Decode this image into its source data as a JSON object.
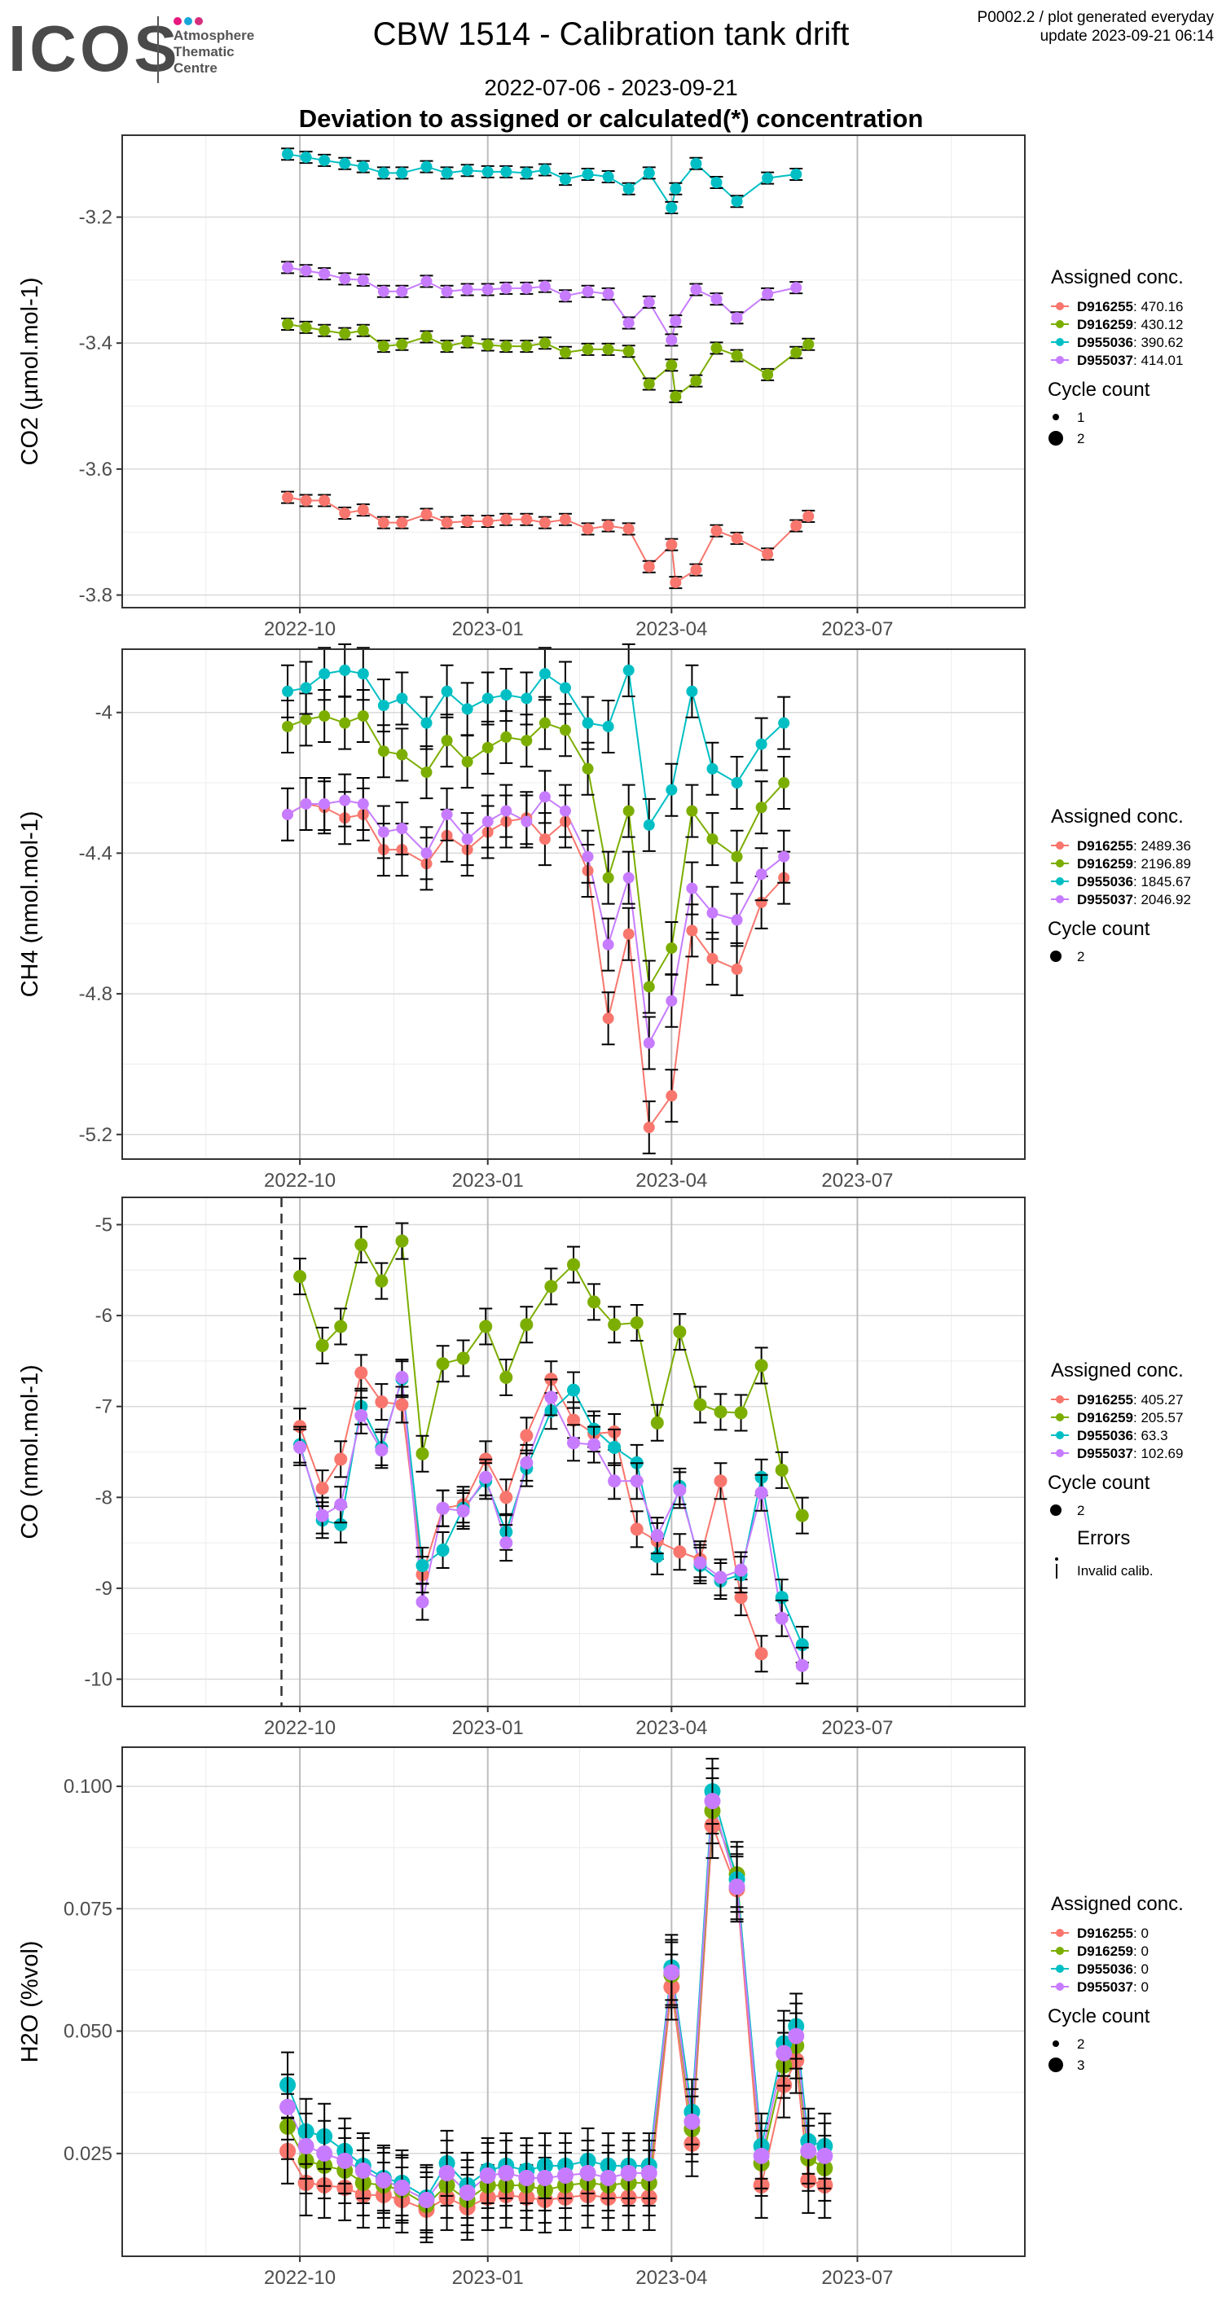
{
  "header": {
    "logo_text": "ICOS",
    "logo_sub": [
      "Atmosphere",
      "Thematic",
      "Centre"
    ],
    "logo_dot_colors": [
      "#e6197f",
      "#1aa6d8",
      "#d42d7c"
    ],
    "title": "CBW 1514 - Calibration tank drift",
    "date_range": "2022-07-06 - 2023-09-21",
    "subtitle": "Deviation to assigned or calculated(*) concentration",
    "info_line1": "P0002.2 / plot generated everyday",
    "info_line2": "update  2023-09-21 06:14"
  },
  "colors": {
    "D916255": "#F8766D",
    "D916259": "#7CAE00",
    "D955036": "#00BFC4",
    "D955037": "#C77CFF"
  },
  "chart_data": [
    {
      "type": "scatter",
      "ylabel": "CO2 (µmol.mol-1)",
      "x_tick_labels": [
        "2022-10",
        "2023-01",
        "2023-04",
        "2023-07"
      ],
      "y_ticks": [
        -3.2,
        -3.4,
        -3.6,
        -3.8
      ],
      "ylim": [
        -3.82,
        -3.07
      ],
      "legend": {
        "title": "Assigned conc.",
        "entries": [
          {
            "tank": "D916255",
            "value": ": 470.16"
          },
          {
            "tank": "D916259",
            "value": ": 430.12"
          },
          {
            "tank": "D955036",
            "value": ": 390.62"
          },
          {
            "tank": "D955037",
            "value": ": 414.01"
          }
        ],
        "cycle_title": "Cycle count",
        "cycle_items": [
          "1",
          "2"
        ]
      },
      "x": [
        "2022-09-25",
        "2022-10-04",
        "2022-10-13",
        "2022-10-23",
        "2022-11-01",
        "2022-11-11",
        "2022-11-20",
        "2022-12-02",
        "2022-12-12",
        "2022-12-22",
        "2023-01-01",
        "2023-01-10",
        "2023-01-20",
        "2023-01-29",
        "2023-02-08",
        "2023-02-19",
        "2023-03-01",
        "2023-03-11",
        "2023-03-21",
        "2023-04-01",
        "2023-04-03",
        "2023-04-13",
        "2023-04-23",
        "2023-05-03",
        "2023-05-18",
        "2023-06-01",
        "2023-06-07",
        "2023-06-15",
        "2023-06-30",
        "2023-07-15",
        "2023-07-31",
        "2023-08-15",
        "2023-08-27"
      ],
      "series": [
        {
          "name": "D916255",
          "values": [
            -3.645,
            -3.65,
            -3.65,
            -3.67,
            -3.665,
            -3.685,
            -3.685,
            -3.672,
            -3.685,
            -3.683,
            -3.683,
            -3.68,
            -3.68,
            -3.685,
            -3.68,
            -3.695,
            -3.69,
            -3.695,
            -3.755,
            -3.72,
            -3.78,
            -3.76,
            -3.698,
            -3.71,
            -3.735,
            -3.69,
            -3.675,
            null,
            null,
            null,
            null,
            null,
            null
          ]
        },
        {
          "name": "D916259",
          "values": [
            -3.37,
            -3.375,
            -3.38,
            -3.385,
            -3.38,
            -3.405,
            -3.402,
            -3.39,
            -3.405,
            -3.398,
            -3.403,
            -3.405,
            -3.405,
            -3.4,
            -3.415,
            -3.41,
            -3.41,
            -3.413,
            -3.465,
            -3.435,
            -3.485,
            -3.46,
            -3.408,
            -3.42,
            -3.45,
            -3.415,
            -3.402,
            null,
            null,
            null,
            null,
            null,
            null
          ]
        },
        {
          "name": "D955036",
          "values": [
            -3.1,
            -3.105,
            -3.11,
            -3.115,
            -3.12,
            -3.13,
            -3.13,
            -3.12,
            -3.13,
            -3.126,
            -3.128,
            -3.128,
            -3.13,
            -3.125,
            -3.14,
            -3.132,
            -3.136,
            -3.155,
            -3.13,
            -3.185,
            -3.155,
            -3.115,
            -3.145,
            -3.175,
            -3.138,
            -3.132,
            null,
            null,
            null,
            null,
            null,
            null,
            null
          ]
        },
        {
          "name": "D955037",
          "values": [
            -3.28,
            -3.285,
            -3.29,
            -3.298,
            -3.3,
            -3.318,
            -3.318,
            -3.302,
            -3.318,
            -3.315,
            -3.315,
            -3.313,
            -3.313,
            -3.31,
            -3.325,
            -3.318,
            -3.322,
            -3.368,
            -3.335,
            -3.395,
            -3.365,
            -3.315,
            -3.33,
            -3.36,
            -3.322,
            -3.312,
            null,
            null,
            null,
            null,
            null,
            null,
            null
          ]
        }
      ]
    },
    {
      "type": "scatter",
      "ylabel": "CH4 (nmol.mol-1)",
      "x_tick_labels": [
        "2022-10",
        "2023-01",
        "2023-04",
        "2023-07"
      ],
      "y_ticks": [
        -4.0,
        -4.4,
        -4.8,
        -5.2
      ],
      "ylim": [
        -5.27,
        -3.82
      ],
      "legend": {
        "title": "Assigned conc.",
        "entries": [
          {
            "tank": "D916255",
            "value": ": 2489.36"
          },
          {
            "tank": "D916259",
            "value": ": 2196.89"
          },
          {
            "tank": "D955036",
            "value": ": 1845.67"
          },
          {
            "tank": "D955037",
            "value": ": 2046.92"
          }
        ],
        "cycle_title": "Cycle count",
        "cycle_items": [
          "2"
        ]
      },
      "x": [
        "2022-09-25",
        "2022-10-04",
        "2022-10-13",
        "2022-10-23",
        "2022-11-01",
        "2022-11-11",
        "2022-11-20",
        "2022-12-02",
        "2022-12-12",
        "2022-12-22",
        "2023-01-01",
        "2023-01-10",
        "2023-01-20",
        "2023-01-29",
        "2023-02-08",
        "2023-02-19",
        "2023-03-01",
        "2023-03-11",
        "2023-03-21",
        "2023-04-01",
        "2023-04-11",
        "2023-04-21",
        "2023-05-03",
        "2023-05-15",
        "2023-05-26",
        "2023-06-01",
        "2023-06-07",
        "2023-06-15",
        "2023-06-30",
        "2023-07-15",
        "2023-07-25",
        "2023-08-05",
        "2023-08-15",
        "2023-08-27"
      ],
      "series": [
        {
          "name": "D916255",
          "values": [
            -4.29,
            -4.26,
            -4.27,
            -4.3,
            -4.29,
            -4.39,
            -4.39,
            -4.43,
            -4.35,
            -4.39,
            -4.34,
            -4.31,
            -4.3,
            -4.36,
            -4.31,
            -4.45,
            -4.87,
            -4.63,
            -5.18,
            -5.09,
            -4.62,
            -4.7,
            -4.73,
            -4.54,
            -4.47,
            null,
            null,
            null,
            null,
            null,
            null,
            null,
            null,
            null
          ]
        },
        {
          "name": "D916259",
          "values": [
            -4.04,
            -4.02,
            -4.01,
            -4.03,
            -4.01,
            -4.11,
            -4.12,
            -4.17,
            -4.08,
            -4.14,
            -4.1,
            -4.07,
            -4.08,
            -4.03,
            -4.05,
            -4.16,
            -4.47,
            -4.28,
            -4.78,
            -4.67,
            -4.28,
            -4.36,
            -4.41,
            -4.27,
            -4.2,
            null,
            null,
            null,
            null,
            null,
            null,
            null,
            null,
            null
          ]
        },
        {
          "name": "D955036",
          "values": [
            -3.94,
            -3.93,
            -3.89,
            -3.88,
            -3.89,
            -3.98,
            -3.96,
            -4.03,
            -3.94,
            -3.99,
            -3.96,
            -3.95,
            -3.96,
            -3.89,
            -3.93,
            -4.03,
            -4.04,
            -3.88,
            -4.32,
            -4.22,
            -3.94,
            -4.16,
            -4.2,
            -4.09,
            -4.03,
            null,
            null,
            null,
            null,
            null,
            null,
            null,
            null,
            null
          ]
        },
        {
          "name": "D955037",
          "values": [
            -4.29,
            -4.26,
            -4.26,
            -4.25,
            -4.26,
            -4.34,
            -4.33,
            -4.4,
            -4.29,
            -4.36,
            -4.31,
            -4.28,
            -4.31,
            -4.24,
            -4.28,
            -4.41,
            -4.66,
            -4.47,
            -4.94,
            -4.82,
            -4.5,
            -4.57,
            -4.59,
            -4.46,
            -4.41,
            null,
            null,
            null,
            null,
            null,
            null,
            null,
            null,
            null
          ]
        }
      ]
    },
    {
      "type": "scatter",
      "ylabel": "CO (nmol.mol-1)",
      "x_tick_labels": [
        "2022-10",
        "2023-01",
        "2023-04",
        "2023-07"
      ],
      "y_ticks": [
        -5,
        -6,
        -7,
        -8,
        -9,
        -10
      ],
      "ylim": [
        -10.3,
        -4.7
      ],
      "legend": {
        "title": "Assigned conc.",
        "entries": [
          {
            "tank": "D916255",
            "value": ": 405.27"
          },
          {
            "tank": "D916259",
            "value": ": 205.57"
          },
          {
            "tank": "D955036",
            "value": ": 63.3"
          },
          {
            "tank": "D955037",
            "value": ": 102.69"
          }
        ],
        "cycle_title": "Cycle count",
        "cycle_items": [
          "2"
        ],
        "errors_title": "Errors",
        "errors_items": [
          "Invalid calib."
        ]
      },
      "x": [
        "2022-10-01",
        "2022-10-12",
        "2022-10-21",
        "2022-10-31",
        "2022-11-10",
        "2022-11-20",
        "2022-11-30",
        "2022-12-10",
        "2022-12-20",
        "2022-12-31",
        "2023-01-10",
        "2023-01-20",
        "2023-02-01",
        "2023-02-12",
        "2023-02-22",
        "2023-03-04",
        "2023-03-15",
        "2023-03-25",
        "2023-04-05",
        "2023-04-15",
        "2023-04-25",
        "2023-05-05",
        "2023-05-15",
        "2023-05-25",
        "2023-06-04",
        "2023-06-15",
        "2023-06-25",
        "2023-07-05",
        "2023-07-15",
        "2023-07-25",
        "2023-08-05",
        "2023-08-15",
        "2023-08-25"
      ],
      "series": [
        {
          "name": "D916255",
          "values": [
            -7.22,
            -7.9,
            -7.58,
            -6.63,
            -6.95,
            -6.98,
            -8.85,
            -8.12,
            -8.08,
            -7.58,
            -8.0,
            -7.32,
            -6.7,
            -7.15,
            -7.3,
            -7.28,
            -8.35,
            -8.48,
            -8.6,
            -8.68,
            -7.82,
            -9.1,
            -9.72,
            null,
            null,
            null,
            null,
            null,
            null,
            null,
            null,
            null,
            null
          ]
        },
        {
          "name": "D916259",
          "values": [
            -5.57,
            -6.33,
            -6.12,
            -5.22,
            -5.62,
            -5.18,
            -7.52,
            -6.53,
            -6.47,
            -6.12,
            -6.68,
            -6.1,
            -5.68,
            -5.44,
            -5.85,
            -6.1,
            -6.08,
            -7.18,
            -6.18,
            -6.98,
            -7.06,
            -7.07,
            -6.55,
            -7.7,
            -8.2,
            null,
            null,
            null,
            null,
            null,
            null,
            null,
            null
          ]
        },
        {
          "name": "D955036",
          "values": [
            -7.42,
            -8.25,
            -8.3,
            -7.0,
            -7.45,
            -6.7,
            -8.75,
            -8.58,
            -8.12,
            -7.82,
            -8.38,
            -7.68,
            -7.05,
            -6.82,
            -7.25,
            -7.45,
            -7.62,
            -8.65,
            -7.88,
            -8.75,
            -8.92,
            -8.85,
            -7.78,
            -9.1,
            -9.62,
            null,
            null,
            null,
            null,
            null,
            null,
            null,
            null
          ]
        },
        {
          "name": "D955037",
          "values": [
            -7.45,
            -8.2,
            -8.08,
            -7.1,
            -7.48,
            -6.68,
            -9.15,
            -8.12,
            -8.15,
            -7.78,
            -8.5,
            -7.62,
            -6.9,
            -7.4,
            -7.42,
            -7.82,
            -7.82,
            -8.42,
            -7.92,
            -8.72,
            -8.88,
            -8.8,
            -7.95,
            -9.33,
            -9.85,
            null,
            null,
            null,
            null,
            null,
            null,
            null,
            null
          ]
        }
      ]
    },
    {
      "type": "scatter",
      "ylabel": "H2O (%vol)",
      "x_tick_labels": [
        "2022-10",
        "2023-01",
        "2023-04",
        "2023-07"
      ],
      "y_ticks": [
        0.1,
        0.075,
        0.05,
        0.025
      ],
      "ytick_labels": [
        "0.100",
        "0.075",
        "0.050",
        "0.025"
      ],
      "ylim": [
        0.004,
        0.108
      ],
      "legend": {
        "title": "Assigned conc.",
        "entries": [
          {
            "tank": "D916255",
            "value": ": 0"
          },
          {
            "tank": "D916259",
            "value": ": 0"
          },
          {
            "tank": "D955036",
            "value": ": 0"
          },
          {
            "tank": "D955037",
            "value": ": 0"
          }
        ],
        "cycle_title": "Cycle count",
        "cycle_items": [
          "2",
          "3"
        ]
      },
      "x": [
        "2022-09-25",
        "2022-10-04",
        "2022-10-13",
        "2022-10-23",
        "2022-11-01",
        "2022-11-11",
        "2022-11-20",
        "2022-12-02",
        "2022-12-12",
        "2022-12-22",
        "2023-01-01",
        "2023-01-10",
        "2023-01-20",
        "2023-01-29",
        "2023-02-08",
        "2023-02-19",
        "2023-03-01",
        "2023-03-11",
        "2023-03-21",
        "2023-04-01",
        "2023-04-11",
        "2023-04-21",
        "2023-05-03",
        "2023-05-15",
        "2023-05-26",
        "2023-06-01",
        "2023-06-07",
        "2023-06-15",
        "2023-06-30",
        "2023-07-15",
        "2023-07-25",
        "2023-08-05",
        "2023-08-15",
        "2023-08-27"
      ],
      "series": [
        {
          "name": "D916255",
          "values": [
            0.0255,
            0.019,
            0.0185,
            0.018,
            0.0165,
            0.0165,
            0.0155,
            0.0135,
            0.016,
            0.014,
            0.016,
            0.0165,
            0.016,
            0.0155,
            0.016,
            0.0165,
            0.016,
            0.016,
            0.016,
            0.059,
            0.027,
            0.092,
            0.079,
            0.0185,
            0.039,
            0.044,
            0.0195,
            0.0185,
            null,
            null,
            null,
            null,
            null,
            null
          ]
        },
        {
          "name": "D916259",
          "values": [
            0.0305,
            0.0235,
            0.0225,
            0.0215,
            0.019,
            0.0185,
            0.0175,
            0.0145,
            0.0185,
            0.0155,
            0.0185,
            0.0185,
            0.0185,
            0.0175,
            0.0185,
            0.019,
            0.0185,
            0.019,
            0.019,
            0.0615,
            0.03,
            0.095,
            0.082,
            0.023,
            0.043,
            0.047,
            0.024,
            0.022,
            null,
            null,
            null,
            null,
            null,
            null
          ]
        },
        {
          "name": "D955036",
          "values": [
            0.039,
            0.0295,
            0.0285,
            0.0255,
            0.0225,
            0.02,
            0.019,
            0.016,
            0.023,
            0.0185,
            0.0215,
            0.0225,
            0.0215,
            0.0225,
            0.0225,
            0.0235,
            0.0225,
            0.0225,
            0.0225,
            0.063,
            0.0335,
            0.099,
            0.081,
            0.0265,
            0.0475,
            0.051,
            0.0275,
            0.0265,
            null,
            null,
            null,
            null,
            null,
            null
          ]
        },
        {
          "name": "D955037",
          "values": [
            0.0345,
            0.0265,
            0.025,
            0.0235,
            0.0215,
            0.0195,
            0.018,
            0.0155,
            0.021,
            0.017,
            0.0205,
            0.021,
            0.02,
            0.02,
            0.0205,
            0.021,
            0.02,
            0.021,
            0.021,
            0.062,
            0.0315,
            0.097,
            0.0795,
            0.0245,
            0.0455,
            0.049,
            0.0255,
            0.0245,
            null,
            null,
            null,
            null,
            null,
            null
          ]
        }
      ]
    }
  ]
}
